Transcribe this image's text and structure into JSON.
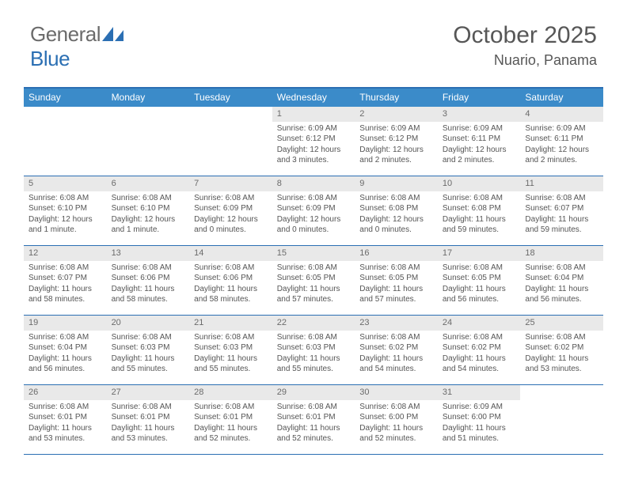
{
  "logo": {
    "text_general": "General",
    "text_blue": "Blue"
  },
  "title": {
    "month_year": "October 2025",
    "location": "Nuario, Panama"
  },
  "colors": {
    "header_bar": "#3b8bc9",
    "border": "#2b6fb3",
    "daynum_bg": "#e9e9e9",
    "text": "#575757",
    "body_text": "#555555",
    "logo_gray": "#6b6b6b",
    "logo_blue": "#2b6fb3"
  },
  "typography": {
    "month_year_fontsize": 30,
    "location_fontsize": 18,
    "day_header_fontsize": 12,
    "body_fontsize": 10
  },
  "day_headers": [
    "Sunday",
    "Monday",
    "Tuesday",
    "Wednesday",
    "Thursday",
    "Friday",
    "Saturday"
  ],
  "weeks": [
    [
      {
        "num": "",
        "sunrise": "",
        "sunset": "",
        "daylight": ""
      },
      {
        "num": "",
        "sunrise": "",
        "sunset": "",
        "daylight": ""
      },
      {
        "num": "",
        "sunrise": "",
        "sunset": "",
        "daylight": ""
      },
      {
        "num": "1",
        "sunrise": "Sunrise: 6:09 AM",
        "sunset": "Sunset: 6:12 PM",
        "daylight": "Daylight: 12 hours and 3 minutes."
      },
      {
        "num": "2",
        "sunrise": "Sunrise: 6:09 AM",
        "sunset": "Sunset: 6:12 PM",
        "daylight": "Daylight: 12 hours and 2 minutes."
      },
      {
        "num": "3",
        "sunrise": "Sunrise: 6:09 AM",
        "sunset": "Sunset: 6:11 PM",
        "daylight": "Daylight: 12 hours and 2 minutes."
      },
      {
        "num": "4",
        "sunrise": "Sunrise: 6:09 AM",
        "sunset": "Sunset: 6:11 PM",
        "daylight": "Daylight: 12 hours and 2 minutes."
      }
    ],
    [
      {
        "num": "5",
        "sunrise": "Sunrise: 6:08 AM",
        "sunset": "Sunset: 6:10 PM",
        "daylight": "Daylight: 12 hours and 1 minute."
      },
      {
        "num": "6",
        "sunrise": "Sunrise: 6:08 AM",
        "sunset": "Sunset: 6:10 PM",
        "daylight": "Daylight: 12 hours and 1 minute."
      },
      {
        "num": "7",
        "sunrise": "Sunrise: 6:08 AM",
        "sunset": "Sunset: 6:09 PM",
        "daylight": "Daylight: 12 hours and 0 minutes."
      },
      {
        "num": "8",
        "sunrise": "Sunrise: 6:08 AM",
        "sunset": "Sunset: 6:09 PM",
        "daylight": "Daylight: 12 hours and 0 minutes."
      },
      {
        "num": "9",
        "sunrise": "Sunrise: 6:08 AM",
        "sunset": "Sunset: 6:08 PM",
        "daylight": "Daylight: 12 hours and 0 minutes."
      },
      {
        "num": "10",
        "sunrise": "Sunrise: 6:08 AM",
        "sunset": "Sunset: 6:08 PM",
        "daylight": "Daylight: 11 hours and 59 minutes."
      },
      {
        "num": "11",
        "sunrise": "Sunrise: 6:08 AM",
        "sunset": "Sunset: 6:07 PM",
        "daylight": "Daylight: 11 hours and 59 minutes."
      }
    ],
    [
      {
        "num": "12",
        "sunrise": "Sunrise: 6:08 AM",
        "sunset": "Sunset: 6:07 PM",
        "daylight": "Daylight: 11 hours and 58 minutes."
      },
      {
        "num": "13",
        "sunrise": "Sunrise: 6:08 AM",
        "sunset": "Sunset: 6:06 PM",
        "daylight": "Daylight: 11 hours and 58 minutes."
      },
      {
        "num": "14",
        "sunrise": "Sunrise: 6:08 AM",
        "sunset": "Sunset: 6:06 PM",
        "daylight": "Daylight: 11 hours and 58 minutes."
      },
      {
        "num": "15",
        "sunrise": "Sunrise: 6:08 AM",
        "sunset": "Sunset: 6:05 PM",
        "daylight": "Daylight: 11 hours and 57 minutes."
      },
      {
        "num": "16",
        "sunrise": "Sunrise: 6:08 AM",
        "sunset": "Sunset: 6:05 PM",
        "daylight": "Daylight: 11 hours and 57 minutes."
      },
      {
        "num": "17",
        "sunrise": "Sunrise: 6:08 AM",
        "sunset": "Sunset: 6:05 PM",
        "daylight": "Daylight: 11 hours and 56 minutes."
      },
      {
        "num": "18",
        "sunrise": "Sunrise: 6:08 AM",
        "sunset": "Sunset: 6:04 PM",
        "daylight": "Daylight: 11 hours and 56 minutes."
      }
    ],
    [
      {
        "num": "19",
        "sunrise": "Sunrise: 6:08 AM",
        "sunset": "Sunset: 6:04 PM",
        "daylight": "Daylight: 11 hours and 56 minutes."
      },
      {
        "num": "20",
        "sunrise": "Sunrise: 6:08 AM",
        "sunset": "Sunset: 6:03 PM",
        "daylight": "Daylight: 11 hours and 55 minutes."
      },
      {
        "num": "21",
        "sunrise": "Sunrise: 6:08 AM",
        "sunset": "Sunset: 6:03 PM",
        "daylight": "Daylight: 11 hours and 55 minutes."
      },
      {
        "num": "22",
        "sunrise": "Sunrise: 6:08 AM",
        "sunset": "Sunset: 6:03 PM",
        "daylight": "Daylight: 11 hours and 55 minutes."
      },
      {
        "num": "23",
        "sunrise": "Sunrise: 6:08 AM",
        "sunset": "Sunset: 6:02 PM",
        "daylight": "Daylight: 11 hours and 54 minutes."
      },
      {
        "num": "24",
        "sunrise": "Sunrise: 6:08 AM",
        "sunset": "Sunset: 6:02 PM",
        "daylight": "Daylight: 11 hours and 54 minutes."
      },
      {
        "num": "25",
        "sunrise": "Sunrise: 6:08 AM",
        "sunset": "Sunset: 6:02 PM",
        "daylight": "Daylight: 11 hours and 53 minutes."
      }
    ],
    [
      {
        "num": "26",
        "sunrise": "Sunrise: 6:08 AM",
        "sunset": "Sunset: 6:01 PM",
        "daylight": "Daylight: 11 hours and 53 minutes."
      },
      {
        "num": "27",
        "sunrise": "Sunrise: 6:08 AM",
        "sunset": "Sunset: 6:01 PM",
        "daylight": "Daylight: 11 hours and 53 minutes."
      },
      {
        "num": "28",
        "sunrise": "Sunrise: 6:08 AM",
        "sunset": "Sunset: 6:01 PM",
        "daylight": "Daylight: 11 hours and 52 minutes."
      },
      {
        "num": "29",
        "sunrise": "Sunrise: 6:08 AM",
        "sunset": "Sunset: 6:01 PM",
        "daylight": "Daylight: 11 hours and 52 minutes."
      },
      {
        "num": "30",
        "sunrise": "Sunrise: 6:08 AM",
        "sunset": "Sunset: 6:00 PM",
        "daylight": "Daylight: 11 hours and 52 minutes."
      },
      {
        "num": "31",
        "sunrise": "Sunrise: 6:09 AM",
        "sunset": "Sunset: 6:00 PM",
        "daylight": "Daylight: 11 hours and 51 minutes."
      },
      {
        "num": "",
        "sunrise": "",
        "sunset": "",
        "daylight": ""
      }
    ]
  ]
}
